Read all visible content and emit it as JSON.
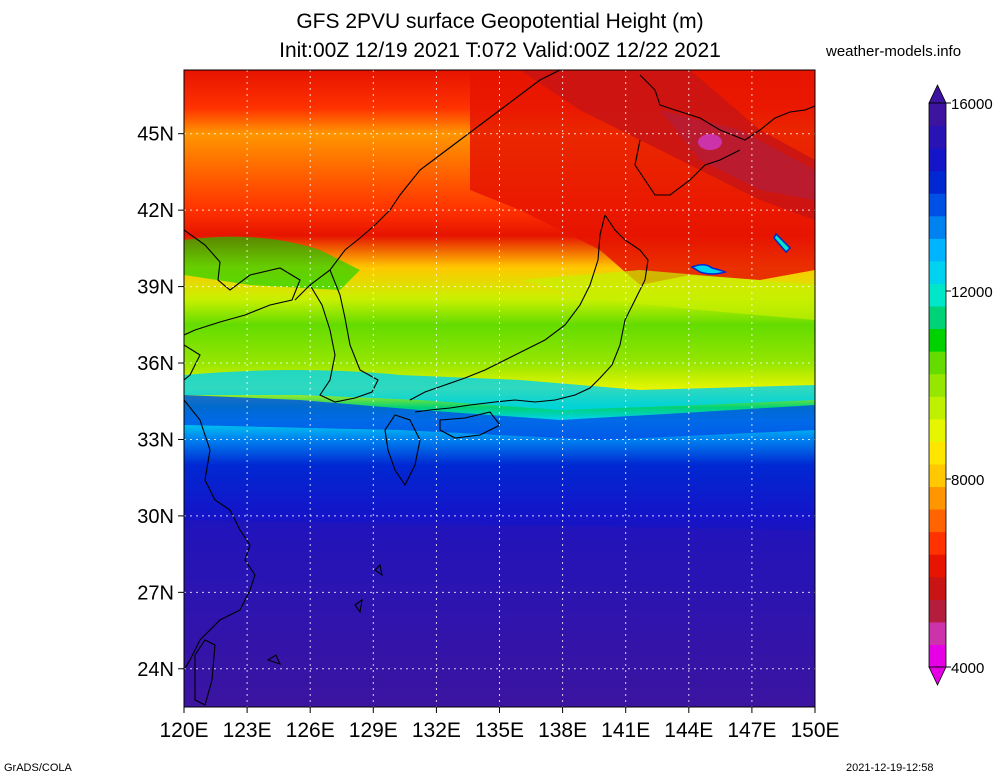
{
  "title": {
    "line1": "GFS 2PVU surface Geopotential Height (m)",
    "line2": "Init:00Z 12/19 2021 T:072 Valid:00Z 12/22 2021"
  },
  "site": "weather-models.info",
  "footer": {
    "left": "GrADS/COLA",
    "right": "2021-12-19-12:58"
  },
  "map": {
    "lon_range": [
      120,
      150
    ],
    "lat_range": [
      22.5,
      47.5
    ],
    "lat_ticks": [
      {
        "value": 45,
        "label": "45N"
      },
      {
        "value": 42,
        "label": "42N"
      },
      {
        "value": 39,
        "label": "39N"
      },
      {
        "value": 36,
        "label": "36N"
      },
      {
        "value": 33,
        "label": "33N"
      },
      {
        "value": 30,
        "label": "30N"
      },
      {
        "value": 27,
        "label": "27N"
      },
      {
        "value": 24,
        "label": "24N"
      }
    ],
    "lon_ticks": [
      {
        "value": 120,
        "label": "120E"
      },
      {
        "value": 123,
        "label": "123E"
      },
      {
        "value": 126,
        "label": "126E"
      },
      {
        "value": 129,
        "label": "129E"
      },
      {
        "value": 132,
        "label": "132E"
      },
      {
        "value": 135,
        "label": "135E"
      },
      {
        "value": 138,
        "label": "138E"
      },
      {
        "value": 141,
        "label": "141E"
      },
      {
        "value": 144,
        "label": "144E"
      },
      {
        "value": 147,
        "label": "147E"
      },
      {
        "value": 150,
        "label": "150E"
      }
    ]
  },
  "colorbar": {
    "colors": [
      "#e600e6",
      "#cc33aa",
      "#b41e3c",
      "#c81414",
      "#e61400",
      "#ff3200",
      "#ff6400",
      "#ff9600",
      "#ffc800",
      "#ffe600",
      "#e6f500",
      "#bef000",
      "#96e600",
      "#64dc00",
      "#00d200",
      "#00d278",
      "#00e6c8",
      "#00d2f0",
      "#00b4ff",
      "#0082f0",
      "#0050e6",
      "#0028d2",
      "#1414c8",
      "#2814b4",
      "#3c14a0"
    ],
    "labels": [
      {
        "value": 16000,
        "label": "16000"
      },
      {
        "value": 12000,
        "label": "12000"
      },
      {
        "value": 8000,
        "label": "8000"
      },
      {
        "value": 4000,
        "label": "4000"
      }
    ],
    "range": [
      4000,
      16000
    ]
  }
}
